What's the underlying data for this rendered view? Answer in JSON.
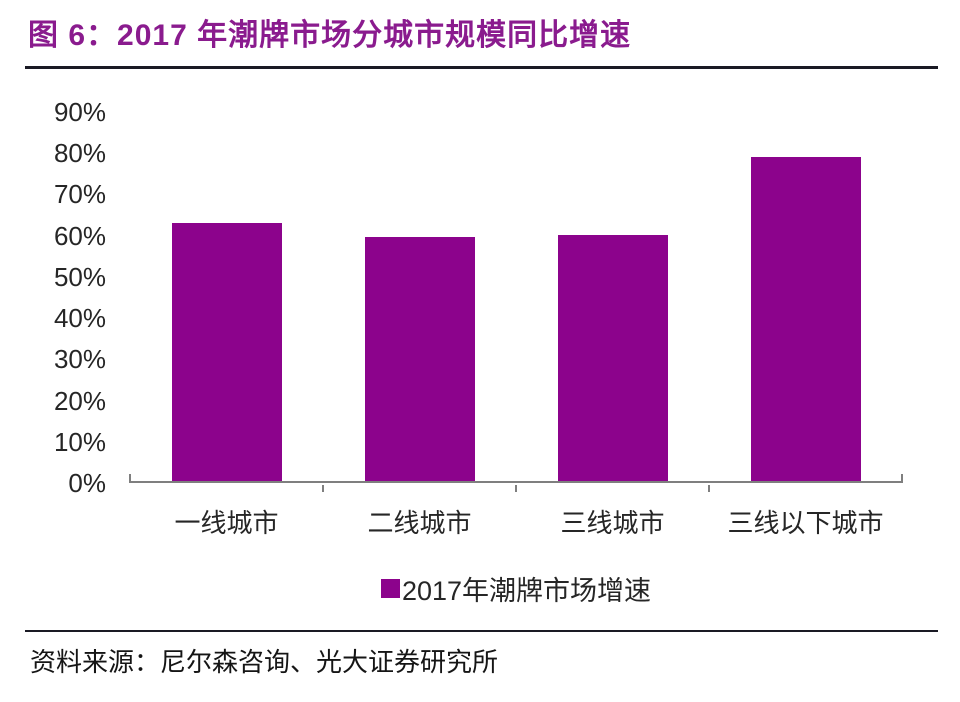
{
  "page": {
    "title": "图 6：2017 年潮牌市场分城市规模同比增速",
    "source": "资料来源：尼尔森咨询、光大证券研究所"
  },
  "legend": {
    "label": "2017年潮牌市场增速"
  },
  "colors": {
    "title": "#8A1B8E",
    "bar": "#8C038C",
    "axis": "#7F7F7F",
    "text": "#262626",
    "rule": "#1A1A24"
  },
  "chart_data": {
    "type": "bar",
    "title": "2017 年潮牌市场分城市规模同比增速",
    "categories": [
      "一线城市",
      "二线城市",
      "三线城市",
      "三线以下城市"
    ],
    "series": [
      {
        "name": "2017年潮牌市场增速",
        "values": [
          63,
          59.5,
          60,
          79
        ]
      }
    ],
    "unit": "%",
    "xlabel": "",
    "ylabel": "",
    "ylim": [
      0,
      90
    ],
    "ytick_step": 10,
    "ytick_labels": [
      "0%",
      "10%",
      "20%",
      "30%",
      "40%",
      "50%",
      "60%",
      "70%",
      "80%",
      "90%"
    ],
    "grid": false,
    "legend_position": "bottom",
    "bar_color": "#8C038C"
  }
}
